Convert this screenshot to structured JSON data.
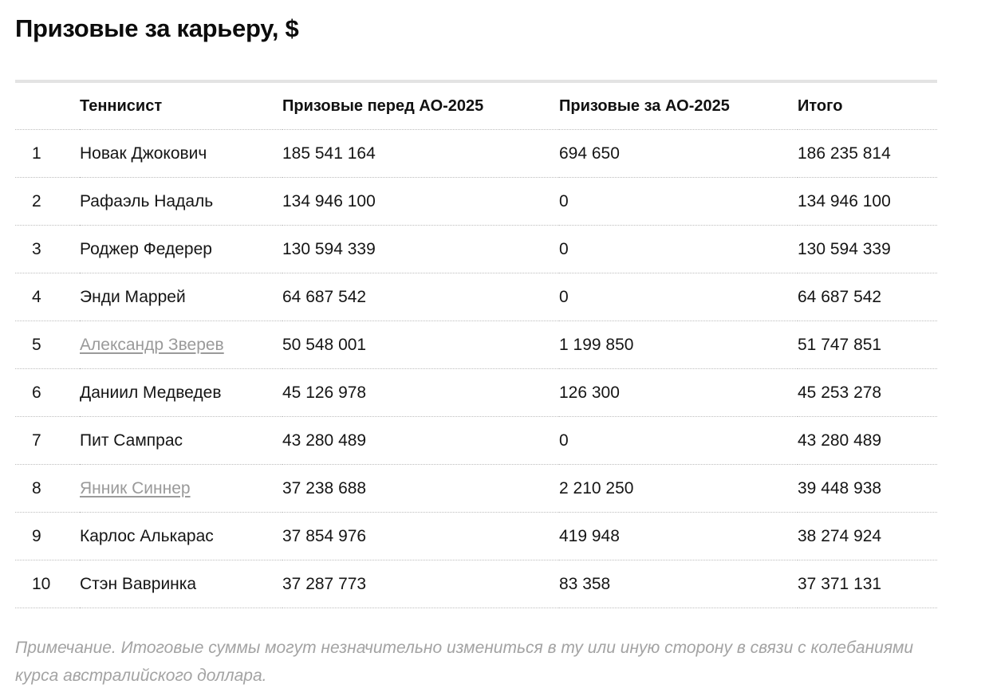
{
  "title": "Призовые за карьеру, $",
  "table": {
    "headers": {
      "rank": "",
      "player": "Теннисист",
      "before": "Призовые перед АО-2025",
      "during": "Призовые за АО-2025",
      "total": "Итого"
    },
    "rows": [
      {
        "rank": "1",
        "player": "Новак Джокович",
        "before": "185 541 164",
        "during": "694 650",
        "total": "186 235 814",
        "link": false
      },
      {
        "rank": "2",
        "player": "Рафаэль Надаль",
        "before": "134 946 100",
        "during": "0",
        "total": "134 946 100",
        "link": false
      },
      {
        "rank": "3",
        "player": "Роджер Федерер",
        "before": "130 594 339",
        "during": "0",
        "total": "130 594 339",
        "link": false
      },
      {
        "rank": "4",
        "player": "Энди Маррей",
        "before": "64 687 542",
        "during": "0",
        "total": "64 687 542",
        "link": false
      },
      {
        "rank": "5",
        "player": "Александр Зверев",
        "before": "50 548 001",
        "during": "1 199 850",
        "total": "51 747 851",
        "link": true
      },
      {
        "rank": "6",
        "player": "Даниил Медведев",
        "before": "45 126 978",
        "during": "126 300",
        "total": "45 253 278",
        "link": false
      },
      {
        "rank": "7",
        "player": "Пит Сампрас",
        "before": "43 280 489",
        "during": "0",
        "total": "43 280 489",
        "link": false
      },
      {
        "rank": "8",
        "player": "Янник Синнер",
        "before": "37 238 688",
        "during": "2 210 250",
        "total": "39 448 938",
        "link": true
      },
      {
        "rank": "9",
        "player": "Карлос Алькарас",
        "before": "37 854 976",
        "during": "419 948",
        "total": "38 274 924",
        "link": false
      },
      {
        "rank": "10",
        "player": "Стэн Вавринка",
        "before": "37 287 773",
        "during": "83 358",
        "total": "37 371 131",
        "link": false
      }
    ]
  },
  "note": "Примечание. Итоговые суммы могут незначительно измениться в ту или иную сторону в связи с колебаниями курса австралийского доллара.",
  "colors": {
    "text": "#111111",
    "link": "#9a9a9a",
    "note": "#a3a3a3",
    "rule": "#e3e3e3",
    "divider": "#bdbdbd"
  }
}
